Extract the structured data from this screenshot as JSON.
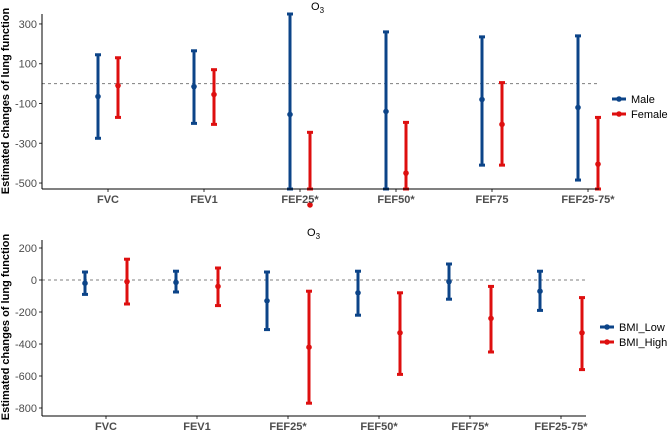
{
  "chart_data": [
    {
      "type": "errorbar",
      "title": "O3",
      "title_main": "O",
      "title_sub": "3",
      "xlabel": "",
      "ylabel": "Estimated changes of lung function",
      "ylim": [
        -530,
        350
      ],
      "yticks": [
        300,
        100,
        -100,
        -300,
        -500
      ],
      "ytick_labels": [
        "300",
        "100",
        "-100",
        "-300",
        "-500"
      ],
      "reference_line": 0,
      "categories": [
        "FVC",
        "FEV1",
        "FEF25*",
        "FEF50*",
        "FEF75",
        "FEF25-75*"
      ],
      "legend_position": "right",
      "series": [
        {
          "name": "Male",
          "color": "#0c4488",
          "estimates": [
            -65,
            -15,
            -155,
            -140,
            -80,
            -120
          ],
          "lower": [
            -275,
            -200,
            -715,
            -545,
            -410,
            -485
          ],
          "upper": [
            145,
            165,
            385,
            260,
            235,
            240
          ]
        },
        {
          "name": "Female",
          "color": "#de0f0f",
          "estimates": [
            -10,
            -55,
            -610,
            -450,
            -205,
            -405
          ],
          "lower": [
            -170,
            -205,
            -985,
            -740,
            -410,
            -670
          ],
          "upper": [
            130,
            70,
            -245,
            -195,
            5,
            -170
          ]
        }
      ]
    },
    {
      "type": "errorbar",
      "title": "O3",
      "title_main": "O",
      "title_sub": "3",
      "xlabel": "",
      "ylabel": "Estimated changes of lung function",
      "ylim": [
        -850,
        250
      ],
      "yticks": [
        200,
        0,
        -200,
        -400,
        -600,
        -800
      ],
      "ytick_labels": [
        "200",
        "0",
        "-200",
        "-400",
        "-600",
        "-800"
      ],
      "reference_line": 0,
      "categories": [
        "FVC",
        "FEV1",
        "FEF25*",
        "FEF50*",
        "FEF75*",
        "FEF25-75*"
      ],
      "legend_position": "right",
      "series": [
        {
          "name": "BMI_Low",
          "color": "#0c4488",
          "estimates": [
            -20,
            -15,
            -130,
            -80,
            -10,
            -70
          ],
          "lower": [
            -90,
            -75,
            -310,
            -220,
            -120,
            -190
          ],
          "upper": [
            50,
            55,
            50,
            55,
            100,
            55
          ]
        },
        {
          "name": "BMI_High",
          "color": "#de0f0f",
          "estimates": [
            -10,
            -40,
            -420,
            -330,
            -240,
            -330
          ],
          "lower": [
            -150,
            -160,
            -770,
            -590,
            -450,
            -560
          ],
          "upper": [
            130,
            75,
            -70,
            -80,
            -40,
            -110
          ]
        }
      ]
    }
  ]
}
